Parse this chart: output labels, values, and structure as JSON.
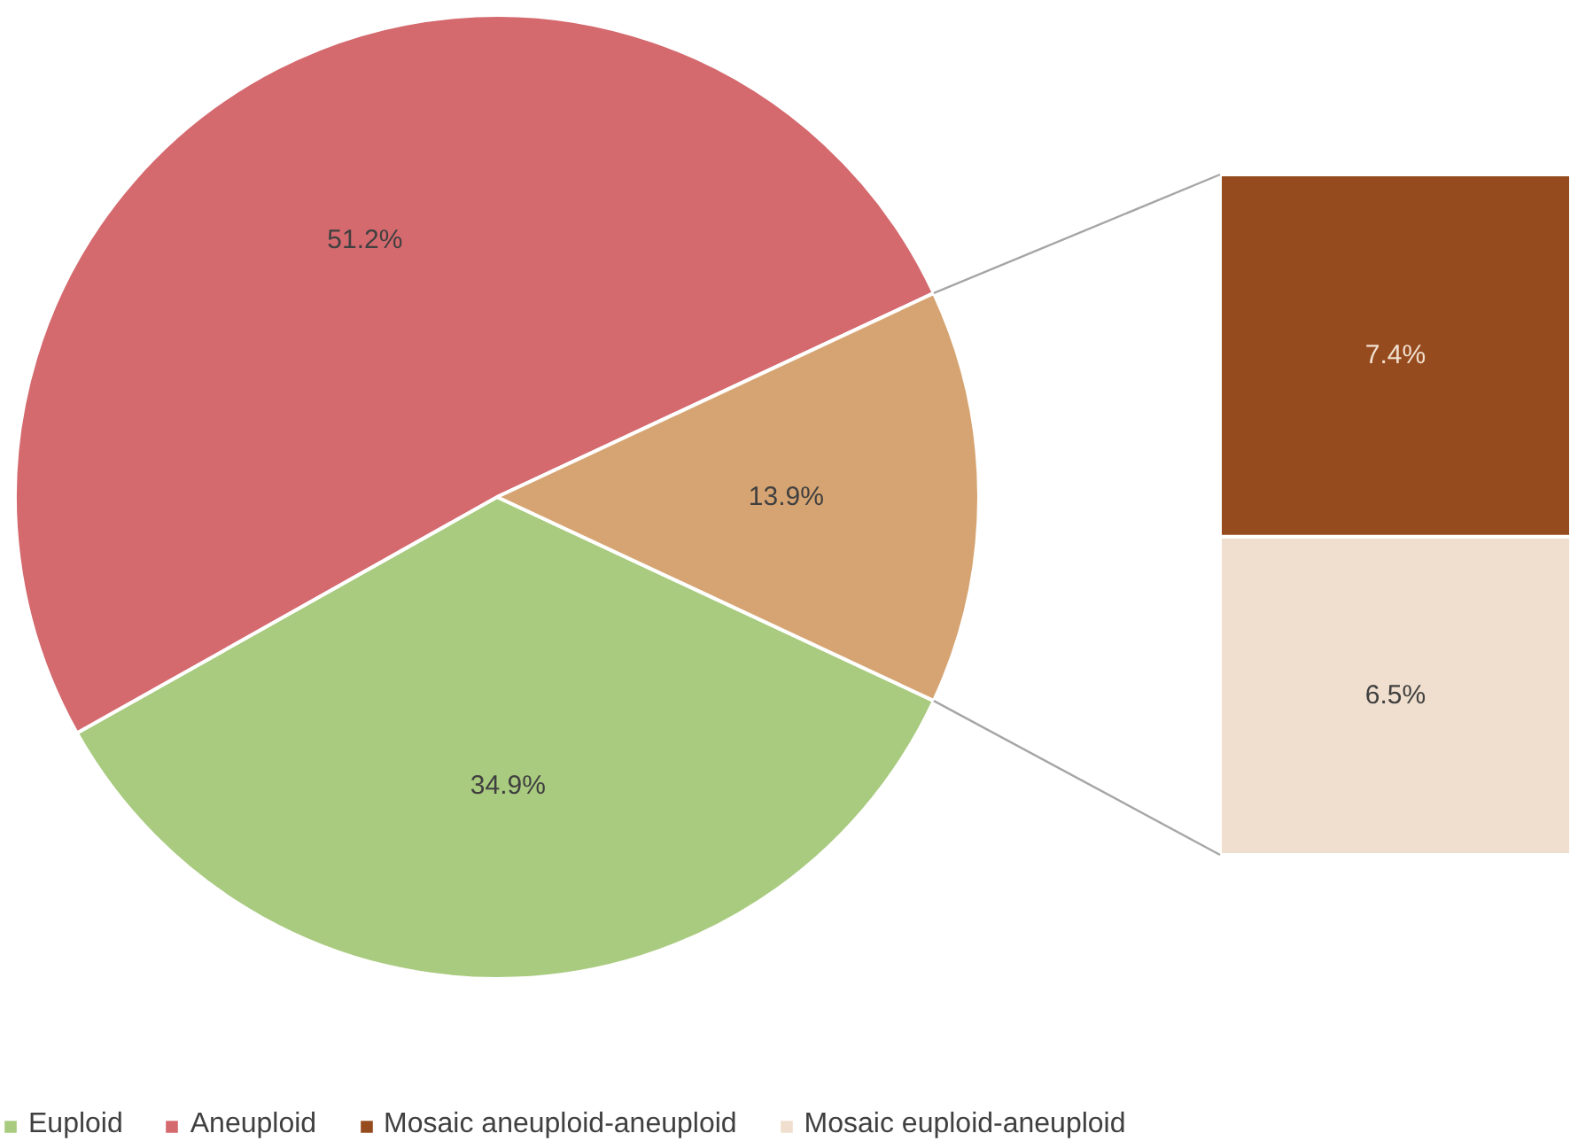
{
  "chart_data": [
    {
      "type": "pie",
      "categories": [
        "Euploid",
        "Aneuploid",
        null
      ],
      "values": [
        34.9,
        51.2,
        13.9
      ],
      "colors": [
        "#a9cb7f",
        "#d4696e",
        "#d6a472"
      ],
      "value_labels": [
        "34.9%",
        "51.2%",
        "13.9%"
      ],
      "legend": "bottom"
    },
    {
      "type": "bar",
      "categories": [
        null
      ],
      "stacked": true,
      "legend": "bottom",
      "series": [
        {
          "name": "Mosaic euploid-aneuploid",
          "color": "#f0dfce",
          "values": [
            6.5
          ],
          "value_labels": [
            "6.5%"
          ]
        },
        {
          "name": "Mosaic aneuploid-aneuploid",
          "color": "#964b1e",
          "values": [
            7.4
          ],
          "value_labels": [
            "7.4%"
          ]
        }
      ]
    }
  ]
}
